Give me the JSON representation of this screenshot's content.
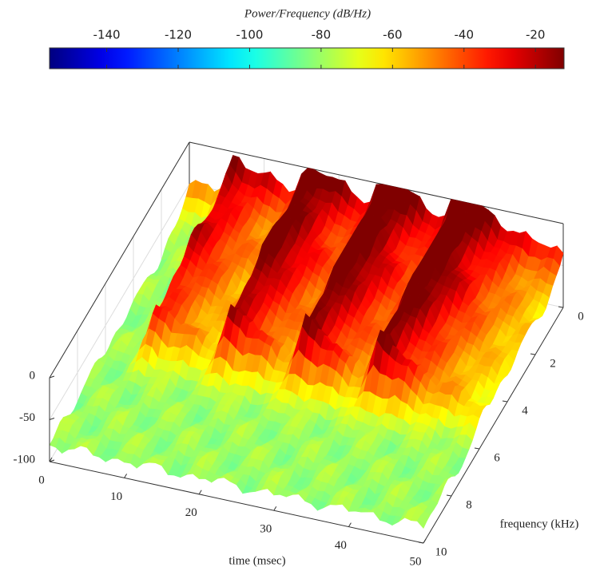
{
  "chart_data": {
    "type": "surface",
    "colorbar_label": "Power/Frequency (dB/Hz)",
    "clim": [
      -156,
      -12
    ],
    "cticks": [
      -140,
      -120,
      -100,
      -80,
      -60,
      -40,
      -20
    ],
    "xlabel": "time (msec)",
    "xlim": [
      0,
      50
    ],
    "xticks": [
      0,
      10,
      20,
      30,
      40,
      50
    ],
    "ylabel": "frequency (kHz)",
    "ylim": [
      0,
      10
    ],
    "yticks": [
      0,
      2,
      4,
      6,
      8,
      10
    ],
    "zlim": [
      -100,
      0
    ],
    "zticks": [
      -100,
      -50,
      0
    ],
    "colormap": "jet",
    "grid": true
  }
}
